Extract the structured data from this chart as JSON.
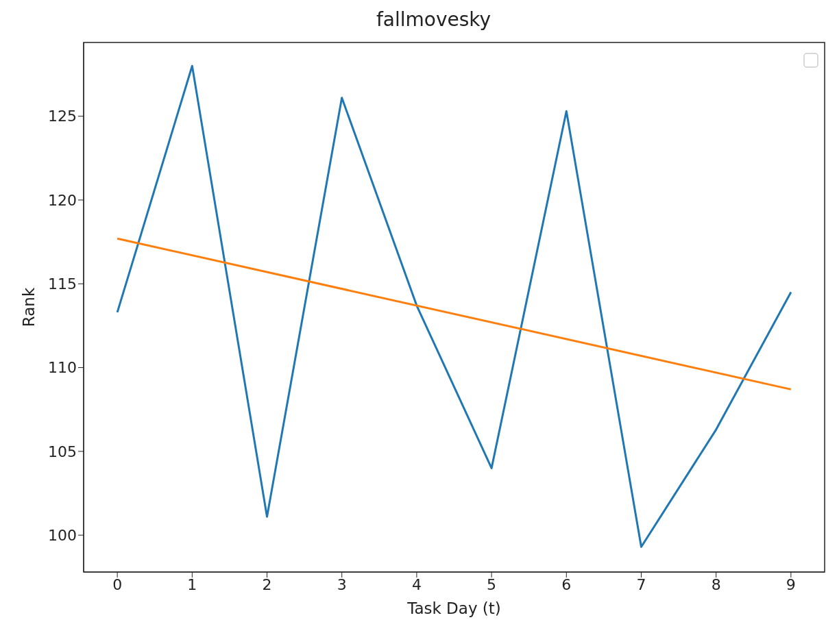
{
  "chart_data": {
    "type": "line",
    "title": "fallmovesky",
    "xlabel": "Task Day (t)",
    "ylabel": "Rank",
    "x": [
      0,
      1,
      2,
      3,
      4,
      5,
      6,
      7,
      8,
      9
    ],
    "series": [
      {
        "color": "#1f77b4",
        "values": [
          113.3,
          128.0,
          101.1,
          126.1,
          113.7,
          104.0,
          125.3,
          99.3,
          106.3,
          114.5
        ]
      },
      {
        "color": "#ff7f0e",
        "x": [
          0,
          9
        ],
        "values": [
          117.7,
          108.7
        ]
      }
    ],
    "xlim": [
      -0.45,
      9.45
    ],
    "xticks": [
      0,
      1,
      2,
      3,
      4,
      5,
      6,
      7,
      8,
      9
    ],
    "ylim": [
      97.8,
      129.4
    ],
    "yticks": [
      100,
      105,
      110,
      115,
      120,
      125
    ],
    "grid": false,
    "marker": "none",
    "line_style": "solid"
  }
}
